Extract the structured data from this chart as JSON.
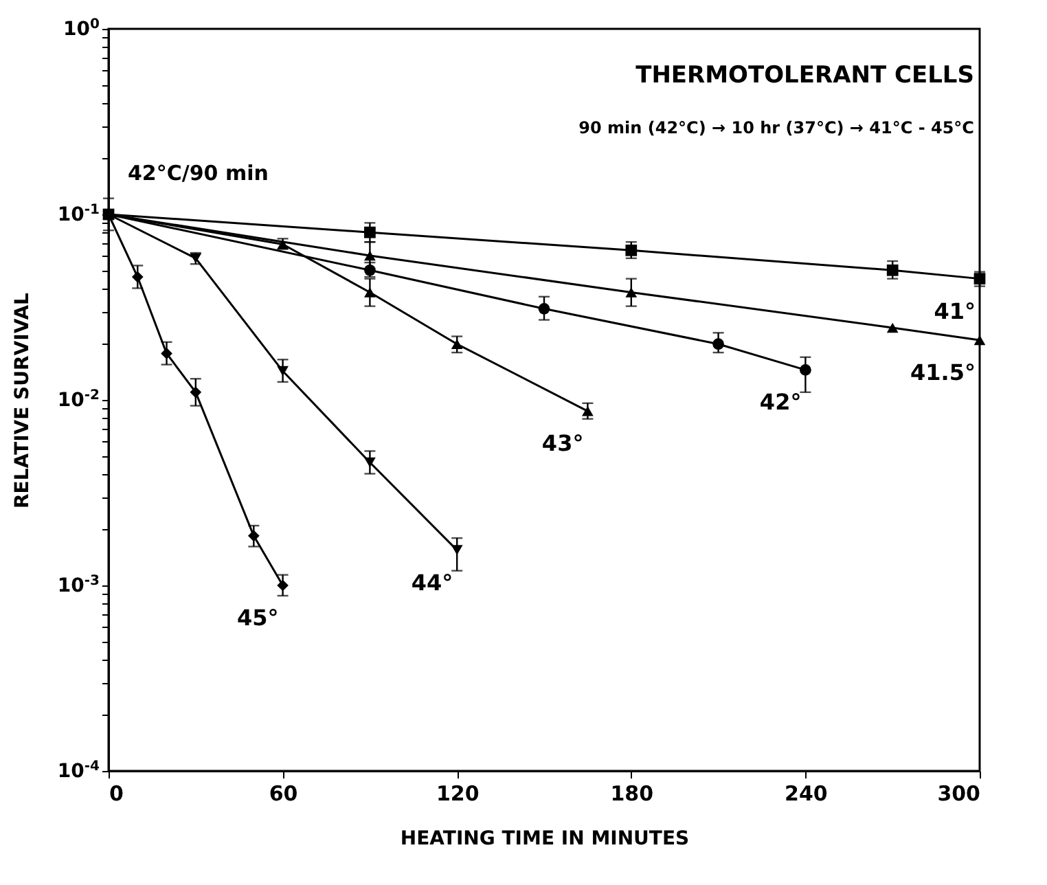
{
  "chart_data": {
    "type": "line",
    "title": "THERMOTOLERANT CELLS",
    "subtitle": "90 min (42°C) → 10 hr (37°C) → 41°C - 45°C",
    "xlabel": "HEATING TIME IN MINUTES",
    "ylabel": "RELATIVE SURVIVAL",
    "log": true,
    "grid": false,
    "legend": false,
    "xlim": [
      0,
      300
    ],
    "xticks": [
      0,
      60,
      120,
      180,
      240,
      300
    ],
    "ylim": [
      0.0001,
      1
    ],
    "yticks": [
      {
        "value": 0.0001,
        "label": "10$^{-4}$"
      },
      {
        "value": 0.0002,
        "label": null
      },
      {
        "value": 0.0003,
        "label": null
      },
      {
        "value": 0.0004,
        "label": null
      },
      {
        "value": 0.0005,
        "label": null
      },
      {
        "value": 0.0006,
        "label": null
      },
      {
        "value": 0.0007,
        "label": null
      },
      {
        "value": 0.0008,
        "label": null
      },
      {
        "value": 0.0009,
        "label": null
      },
      {
        "value": 0.001,
        "label": "10$^{-3}$"
      },
      {
        "value": 0.002,
        "label": null
      },
      {
        "value": 0.003,
        "label": null
      },
      {
        "value": 0.004,
        "label": null
      },
      {
        "value": 0.005,
        "label": null
      },
      {
        "value": 0.006,
        "label": null
      },
      {
        "value": 0.007,
        "label": null
      },
      {
        "value": 0.008,
        "label": null
      },
      {
        "value": 0.009,
        "label": null
      },
      {
        "value": 0.01,
        "label": "10$^{-2}$"
      },
      {
        "value": 0.02,
        "label": null
      },
      {
        "value": 0.03,
        "label": null
      },
      {
        "value": 0.04,
        "label": null
      },
      {
        "value": 0.05,
        "label": null
      },
      {
        "value": 0.06,
        "label": null
      },
      {
        "value": 0.07,
        "label": null
      },
      {
        "value": 0.08,
        "label": null
      },
      {
        "value": 0.09,
        "label": null
      },
      {
        "value": 0.1,
        "label": "10$^{-1}$"
      },
      {
        "value": 0.2,
        "label": null
      },
      {
        "value": 0.3,
        "label": null
      },
      {
        "value": 0.4,
        "label": null
      },
      {
        "value": 0.5,
        "label": null
      },
      {
        "value": 0.6,
        "label": null
      },
      {
        "value": 0.7,
        "label": null
      },
      {
        "value": 0.8,
        "label": null
      },
      {
        "value": 0.9,
        "label": null
      },
      {
        "value": 1,
        "label": "10$^{0}$"
      }
    ],
    "line_style": "solid",
    "series": [
      {
        "name": "41°",
        "color": "#000000",
        "marker": "square",
        "x": [
          0,
          90,
          180,
          270,
          300
        ],
        "values": [
          0.1,
          0.08,
          0.064,
          0.05,
          0.045
        ],
        "errors": [
          null,
          [
            0.071,
            0.09
          ],
          [
            0.058,
            0.071
          ],
          [
            0.045,
            0.056
          ],
          [
            0.041,
            0.049
          ]
        ]
      },
      {
        "name": "41.5°",
        "color": "#000000",
        "marker": "triangle",
        "x": [
          0,
          90,
          180,
          270,
          300
        ],
        "values": [
          0.1,
          0.06,
          0.038,
          0.0245,
          0.021
        ],
        "errors": [
          null,
          [
            0.051,
            0.071
          ],
          [
            0.032,
            0.045
          ],
          null,
          null
        ]
      },
      {
        "name": "42°",
        "color": "#000000",
        "marker": "circle",
        "x": [
          0,
          90,
          150,
          210,
          240
        ],
        "values": [
          0.1,
          0.05,
          0.031,
          0.02,
          0.0145
        ],
        "errors": [
          null,
          [
            0.046,
            0.055
          ],
          [
            0.027,
            0.036
          ],
          [
            0.018,
            0.023
          ],
          [
            0.011,
            0.017
          ]
        ]
      },
      {
        "name": "43°",
        "color": "#000000",
        "marker": "triangle",
        "x": [
          0,
          60,
          90,
          120,
          165
        ],
        "values": [
          0.1,
          0.069,
          0.038,
          0.02,
          0.0087
        ],
        "errors": [
          null,
          [
            0.065,
            0.074
          ],
          [
            0.032,
            0.045
          ],
          [
            0.018,
            0.022
          ],
          [
            0.0079,
            0.0096
          ]
        ]
      },
      {
        "name": "44°",
        "color": "#000000",
        "marker": "triangle-down",
        "x": [
          0,
          30,
          60,
          90,
          120
        ],
        "values": [
          0.1,
          0.058,
          0.0143,
          0.0046,
          0.00155
        ],
        "errors": [
          null,
          [
            0.054,
            0.062
          ],
          [
            0.0125,
            0.0165
          ],
          [
            0.004,
            0.0053
          ],
          [
            0.0012,
            0.0018
          ]
        ]
      },
      {
        "name": "45°",
        "color": "#000000",
        "marker": "diamond",
        "x": [
          0,
          10,
          20,
          30,
          50,
          60
        ],
        "values": [
          0.1,
          0.046,
          0.0178,
          0.011,
          0.00185,
          0.001
        ],
        "errors": [
          [
            0.082,
            0.122
          ],
          [
            0.04,
            0.053
          ],
          [
            0.0155,
            0.0205
          ],
          [
            0.0093,
            0.013
          ],
          [
            0.00162,
            0.0021
          ],
          [
            0.00088,
            0.00114
          ]
        ]
      }
    ],
    "annotations": [
      {
        "text": "42°C/90 min",
        "x": 0,
        "y": 0.1
      }
    ]
  }
}
